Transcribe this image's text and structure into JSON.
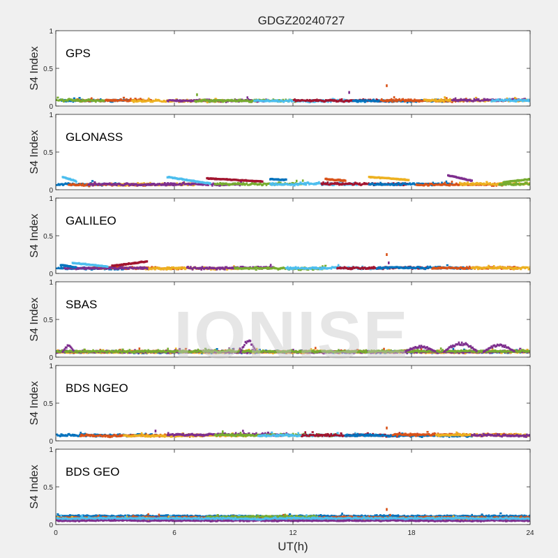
{
  "figure": {
    "title": "GDGZ20240727",
    "watermark": "IONISE",
    "xlabel": "UT(h)",
    "ylabel": "S4 Index",
    "xticks": [
      "0",
      "6",
      "12",
      "18",
      "24"
    ],
    "yticks": [
      "0",
      "0.5",
      "1"
    ]
  },
  "colors": {
    "figure_bg": "#f0f0f0",
    "axes_bg": "#ffffff",
    "series": [
      "#0072bd",
      "#d95319",
      "#edb120",
      "#7e2f8e",
      "#77ac30",
      "#4dbeee",
      "#a2142f"
    ]
  },
  "chart_data": [
    {
      "type": "scatter",
      "panel_label": "GPS",
      "xlim": [
        0,
        24
      ],
      "ylim": [
        0,
        1
      ],
      "xlabel": "UT(h)",
      "ylabel": "S4 Index",
      "baseline": 0.07,
      "noise": 0.02,
      "arcs": [
        [
          0.2,
          3.6
        ],
        [
          1,
          4.8
        ],
        [
          3.8,
          8.4
        ],
        [
          5.6,
          10.6
        ],
        [
          7,
          12.2
        ],
        [
          10,
          15.4
        ],
        [
          12,
          17
        ],
        [
          15,
          19.8
        ],
        [
          16.4,
          20.8
        ],
        [
          18.6,
          24
        ],
        [
          20,
          24
        ],
        [
          0,
          2.4
        ],
        [
          22,
          24
        ]
      ],
      "spikes": [
        {
          "x": 16.7,
          "y": 0.27
        },
        {
          "x": 14.8,
          "y": 0.18
        },
        {
          "x": 7.1,
          "y": 0.15
        }
      ]
    },
    {
      "type": "scatter",
      "panel_label": "GLONASS",
      "xlim": [
        0,
        24
      ],
      "ylim": [
        0,
        1
      ],
      "xlabel": "UT(h)",
      "ylabel": "S4 Index",
      "baseline": 0.07,
      "noise": 0.02,
      "arcs": [
        [
          0,
          3.2
        ],
        [
          0.6,
          4.6
        ],
        [
          2.8,
          7
        ],
        [
          5.4,
          9.4
        ],
        [
          8,
          12.6
        ],
        [
          10.8,
          15.2
        ],
        [
          13.4,
          17.8
        ],
        [
          15.8,
          20
        ],
        [
          18.2,
          22.6
        ],
        [
          20.4,
          24
        ],
        [
          1.6,
          6
        ],
        [
          22.4,
          24
        ]
      ],
      "trends": [
        {
          "x0": 5.6,
          "x1": 7.8,
          "y0": 0.17,
          "y1": 0.08
        },
        {
          "x0": 7.6,
          "x1": 10.4,
          "y0": 0.15,
          "y1": 0.11
        },
        {
          "x0": 10.8,
          "x1": 11.6,
          "y0": 0.14,
          "y1": 0.13
        },
        {
          "x0": 13.6,
          "x1": 14.6,
          "y0": 0.14,
          "y1": 0.12
        },
        {
          "x0": 15.8,
          "x1": 17.8,
          "y0": 0.17,
          "y1": 0.13
        },
        {
          "x0": 19.8,
          "x1": 21,
          "y0": 0.19,
          "y1": 0.12
        },
        {
          "x0": 22.6,
          "x1": 24,
          "y0": 0.1,
          "y1": 0.14
        },
        {
          "x0": 0.3,
          "x1": 1.0,
          "y0": 0.17,
          "y1": 0.11
        }
      ],
      "spikes": []
    },
    {
      "type": "scatter",
      "panel_label": "GALILEO",
      "xlim": [
        0,
        24
      ],
      "ylim": [
        0,
        1
      ],
      "xlabel": "UT(h)",
      "ylabel": "S4 Index",
      "baseline": 0.07,
      "noise": 0.02,
      "arcs": [
        [
          0,
          3.4
        ],
        [
          1.8,
          6.4
        ],
        [
          4.2,
          9.2
        ],
        [
          6.6,
          11
        ],
        [
          9,
          13.6
        ],
        [
          11.6,
          16.2
        ],
        [
          14.2,
          18.8
        ],
        [
          16.2,
          21
        ],
        [
          19,
          23.4
        ],
        [
          21,
          24
        ],
        [
          0.4,
          4.6
        ]
      ],
      "trends": [
        {
          "x0": 0.8,
          "x1": 2.6,
          "y0": 0.14,
          "y1": 0.09
        },
        {
          "x0": 2.8,
          "x1": 4.6,
          "y0": 0.1,
          "y1": 0.16
        },
        {
          "x0": 0.2,
          "x1": 1.0,
          "y0": 0.11,
          "y1": 0.08
        }
      ],
      "spikes": [
        {
          "x": 16.7,
          "y": 0.25
        },
        {
          "x": 16.8,
          "y": 0.14
        }
      ]
    },
    {
      "type": "scatter",
      "panel_label": "SBAS",
      "xlim": [
        0,
        24
      ],
      "ylim": [
        0,
        1
      ],
      "xlabel": "UT(h)",
      "ylabel": "S4 Index",
      "baseline": 0.07,
      "noise": 0.018,
      "arcs": [
        [
          0,
          24
        ],
        [
          0,
          24
        ],
        [
          0,
          24
        ],
        [
          0,
          24
        ],
        [
          0,
          24
        ]
      ],
      "bursts": [
        {
          "x0": 9.3,
          "x1": 10.1,
          "peak": 0.23
        },
        {
          "x0": 17.6,
          "x1": 19.2,
          "peak": 0.15
        },
        {
          "x0": 19.6,
          "x1": 21.3,
          "peak": 0.2
        },
        {
          "x0": 21.6,
          "x1": 23.2,
          "peak": 0.17
        },
        {
          "x0": 0.3,
          "x1": 0.9,
          "peak": 0.16
        }
      ],
      "spikes": []
    },
    {
      "type": "scatter",
      "panel_label": "BDS NGEO",
      "xlim": [
        0,
        24
      ],
      "ylim": [
        0,
        1
      ],
      "xlabel": "UT(h)",
      "ylabel": "S4 Index",
      "baseline": 0.075,
      "noise": 0.02,
      "arcs": [
        [
          0,
          5
        ],
        [
          1.2,
          7.4
        ],
        [
          3.4,
          9.6
        ],
        [
          5.6,
          11.8
        ],
        [
          8,
          14.2
        ],
        [
          10.2,
          16.6
        ],
        [
          12.4,
          18.8
        ],
        [
          14.6,
          21
        ],
        [
          17,
          23.2
        ],
        [
          19.2,
          24
        ],
        [
          21,
          24
        ]
      ],
      "spikes": [
        {
          "x": 16.7,
          "y": 0.17
        },
        {
          "x": 5.0,
          "y": 0.13
        },
        {
          "x": 8.4,
          "y": 0.12
        }
      ]
    },
    {
      "type": "scatter",
      "panel_label": "BDS GEO",
      "xlim": [
        0,
        24
      ],
      "ylim": [
        0,
        1
      ],
      "xlabel": "UT(h)",
      "ylabel": "S4 Index",
      "baseline": 0.085,
      "noise": 0.012,
      "levels": [
        0.11,
        0.09,
        0.07,
        0.05,
        0.1,
        0.08
      ],
      "arcs": [
        [
          0,
          24
        ],
        [
          0,
          24
        ],
        [
          0,
          24
        ],
        [
          0,
          24
        ],
        [
          7.6,
          13.2
        ],
        [
          0,
          24
        ]
      ],
      "spikes": [
        {
          "x": 16.7,
          "y": 0.2
        }
      ]
    }
  ]
}
